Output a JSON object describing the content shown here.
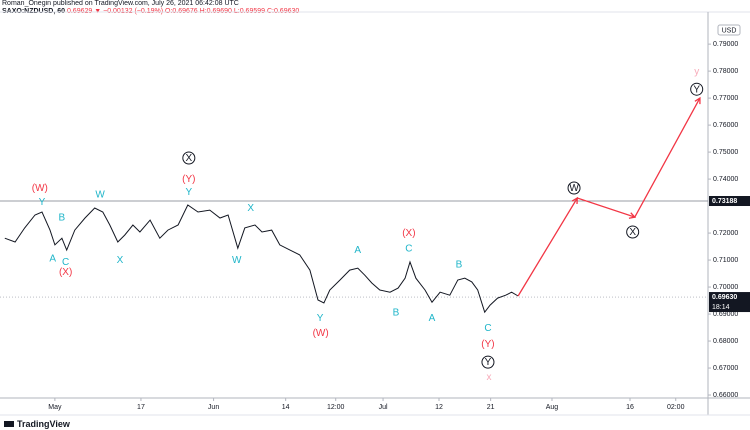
{
  "header": {
    "author_line": "Roman_Onegin published on TradingView.com, July 26, 2021 06:42:08 UTC",
    "symbol": "SAXO:NZDUSD, 60",
    "last": "0.69629",
    "change": "▼ −0.00132 (−0.19%)",
    "ohlc": "O:0.69676 H:0.69690 L:0.69599 C:0.69630"
  },
  "footer": {
    "brand": "TradingView"
  },
  "chart_data": {
    "type": "line",
    "color": "#131722",
    "currency": "USD",
    "x": [
      -9.3,
      -7.4,
      -5.6,
      -3.7,
      -2.4,
      -0.9,
      0,
      1.3,
      2.2,
      3.7,
      5.6,
      7.4,
      8.9,
      10.2,
      11.7,
      13,
      14.5,
      15.8,
      17.7,
      19.5,
      21,
      22.9,
      24.7,
      26.6,
      28.8,
      30.7,
      32.2,
      34,
      35.3,
      37.2,
      38.5,
      40.3,
      41.8,
      43.7,
      45.5,
      47.4,
      48.9,
      50,
      51.1,
      53,
      54.8,
      56.3,
      57.6,
      58.9,
      60.4,
      62.3,
      63.8,
      65.1,
      66,
      67.1,
      68.8,
      70.1,
      71.6,
      73.4,
      74.9,
      76.2,
      77.5,
      78.6,
      79.9,
      80.9,
      82.3,
      83.8,
      84.9,
      86.1
    ],
    "values": [
      0.7181,
      0.7167,
      0.7219,
      0.7267,
      0.7278,
      0.7211,
      0.7156,
      0.7181,
      0.7137,
      0.7211,
      0.7256,
      0.7293,
      0.7278,
      0.723,
      0.7167,
      0.7193,
      0.723,
      0.7204,
      0.7248,
      0.7181,
      0.7211,
      0.723,
      0.7304,
      0.7278,
      0.7285,
      0.7256,
      0.7267,
      0.7144,
      0.7219,
      0.723,
      0.7204,
      0.7211,
      0.7156,
      0.7137,
      0.7119,
      0.7063,
      0.6952,
      0.6941,
      0.6989,
      0.7026,
      0.7063,
      0.707,
      0.7044,
      0.7015,
      0.6989,
      0.6981,
      0.6996,
      0.7033,
      0.7093,
      0.7033,
      0.6989,
      0.6944,
      0.6981,
      0.697,
      0.7026,
      0.7033,
      0.7019,
      0.6989,
      0.6907,
      0.6933,
      0.6959,
      0.697,
      0.6981,
      0.6967
    ],
    "forecast": {
      "color": "#f23645",
      "x": [
        86.1,
        97.1,
        107.8,
        119.9
      ],
      "values": [
        0.6967,
        0.733,
        0.7259,
        0.77
      ]
    },
    "xlim": [
      -10.2,
      121.4
    ],
    "ylim": [
      0.6589,
      0.8019
    ],
    "xticks": [
      {
        "value": 0,
        "label": "May"
      },
      {
        "value": 16,
        "label": "17"
      },
      {
        "value": 29.5,
        "label": "Jun"
      },
      {
        "value": 42.9,
        "label": "14"
      },
      {
        "value": 52.2,
        "label": "12:00"
      },
      {
        "value": 61,
        "label": "Jul"
      },
      {
        "value": 71.4,
        "label": "12"
      },
      {
        "value": 81,
        "label": "21"
      },
      {
        "value": 92.4,
        "label": "Aug"
      },
      {
        "value": 106.9,
        "label": "16"
      },
      {
        "value": 115.4,
        "label": "02:00"
      }
    ],
    "yticks": [
      {
        "value": 0.79,
        "label": "0.79000"
      },
      {
        "value": 0.78,
        "label": "0.78000"
      },
      {
        "value": 0.77,
        "label": "0.77000"
      },
      {
        "value": 0.76,
        "label": "0.76000"
      },
      {
        "value": 0.75,
        "label": "0.75000"
      },
      {
        "value": 0.74,
        "label": "0.74000"
      },
      {
        "value": 0.72,
        "label": "0.72000"
      },
      {
        "value": 0.71,
        "label": "0.71000"
      },
      {
        "value": 0.7,
        "label": "0.70000"
      },
      {
        "value": 0.69,
        "label": "0.69000"
      },
      {
        "value": 0.68,
        "label": "0.68000"
      },
      {
        "value": 0.67,
        "label": "0.67000"
      },
      {
        "value": 0.66,
        "label": "0.66000"
      }
    ],
    "price_lines": [
      {
        "value": 0.73188,
        "label": "0.73188"
      },
      {
        "value": 0.6963,
        "label": "0.69630",
        "countdown": "18:14"
      }
    ],
    "annotations": [
      {
        "text": "(W)",
        "color": "#f23645",
        "x": -2.8,
        "y": 0.7367
      },
      {
        "text": "Y",
        "color": "#1fb5c9",
        "x": -2.4,
        "y": 0.7315
      },
      {
        "text": "B",
        "color": "#1fb5c9",
        "x": 1.3,
        "y": 0.7259
      },
      {
        "text": "A",
        "color": "#1fb5c9",
        "x": -0.4,
        "y": 0.7107
      },
      {
        "text": "C",
        "color": "#1fb5c9",
        "x": 2.0,
        "y": 0.7093
      },
      {
        "text": "(X)",
        "color": "#f23645",
        "x": 2.0,
        "y": 0.7056
      },
      {
        "text": "W",
        "color": "#1fb5c9",
        "x": 8.4,
        "y": 0.7344
      },
      {
        "text": "X",
        "color": "#1fb5c9",
        "x": 12.1,
        "y": 0.71
      },
      {
        "text": "X",
        "color": "#131722",
        "x": 24.9,
        "y": 0.7478,
        "circled": true
      },
      {
        "text": "(Y)",
        "color": "#f23645",
        "x": 24.9,
        "y": 0.74
      },
      {
        "text": "Y",
        "color": "#1fb5c9",
        "x": 24.9,
        "y": 0.7352
      },
      {
        "text": "W",
        "color": "#1fb5c9",
        "x": 33.8,
        "y": 0.71
      },
      {
        "text": "X",
        "color": "#1fb5c9",
        "x": 36.4,
        "y": 0.7293
      },
      {
        "text": "A",
        "color": "#1fb5c9",
        "x": 56.3,
        "y": 0.7137
      },
      {
        "text": "C",
        "color": "#1fb5c9",
        "x": 65.8,
        "y": 0.7144
      },
      {
        "text": "(X)",
        "color": "#f23645",
        "x": 65.8,
        "y": 0.72
      },
      {
        "text": "B",
        "color": "#1fb5c9",
        "x": 75.1,
        "y": 0.7085
      },
      {
        "text": "B",
        "color": "#1fb5c9",
        "x": 63.4,
        "y": 0.6907
      },
      {
        "text": "A",
        "color": "#1fb5c9",
        "x": 70.1,
        "y": 0.6885
      },
      {
        "text": "Y",
        "color": "#1fb5c9",
        "x": 49.3,
        "y": 0.6885
      },
      {
        "text": "(W)",
        "color": "#f23645",
        "x": 49.4,
        "y": 0.683
      },
      {
        "text": "C",
        "color": "#1fb5c9",
        "x": 80.5,
        "y": 0.6848
      },
      {
        "text": "(Y)",
        "color": "#f23645",
        "x": 80.5,
        "y": 0.6789
      },
      {
        "text": "Y",
        "color": "#131722",
        "x": 80.5,
        "y": 0.6722,
        "circled": true
      },
      {
        "text": "x",
        "color": "#f7a9b8",
        "x": 80.7,
        "y": 0.6667
      },
      {
        "text": "W",
        "color": "#131722",
        "x": 96.5,
        "y": 0.7367,
        "circled": true
      },
      {
        "text": "X",
        "color": "#131722",
        "x": 107.4,
        "y": 0.7204,
        "circled": true
      },
      {
        "text": "Y",
        "color": "#131722",
        "x": 119.3,
        "y": 0.7733,
        "circled": true
      },
      {
        "text": "y",
        "color": "#f7a9b8",
        "x": 119.3,
        "y": 0.78
      }
    ]
  }
}
